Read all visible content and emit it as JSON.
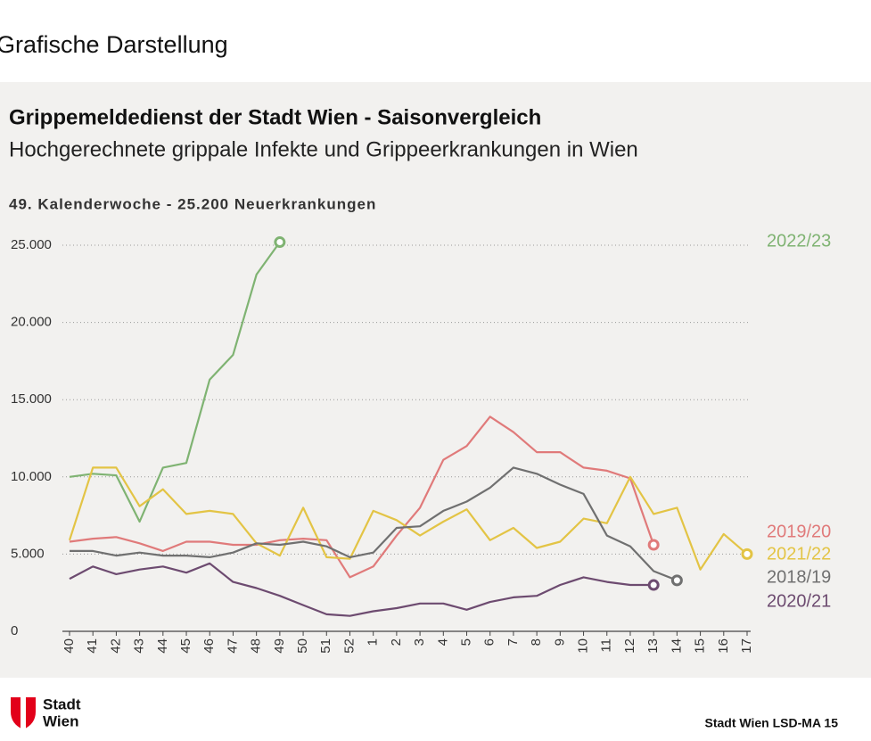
{
  "page": {
    "heading": "Grafische Darstellung",
    "logo": [
      "Stadt",
      "Wien"
    ],
    "footer": "Stadt Wien LSD-MA 15"
  },
  "chart_data": {
    "type": "line",
    "title": "Grippemeldedienst der Stadt Wien - Saisonvergleich",
    "subtitle": "Hochgerechnete grippale Infekte und Grippeerkrankungen in Wien",
    "annotation": "49. Kalenderwoche - 25.200 Neuerkrankungen",
    "categories": [
      "40",
      "41",
      "42",
      "43",
      "44",
      "45",
      "46",
      "47",
      "48",
      "49",
      "50",
      "51",
      "52",
      "1",
      "2",
      "3",
      "4",
      "5",
      "6",
      "7",
      "8",
      "9",
      "10",
      "11",
      "12",
      "13",
      "14",
      "15",
      "16",
      "17"
    ],
    "ylim": [
      0,
      25000
    ],
    "yticks": [
      0,
      {
        "value": 5000,
        "label": "5.000"
      },
      {
        "value": 10000,
        "label": "10.000"
      },
      {
        "value": 15000,
        "label": "15.000"
      },
      {
        "value": 20000,
        "label": "20.000"
      },
      {
        "value": 25000,
        "label": "25.000"
      }
    ],
    "grid": true,
    "series": [
      {
        "name": "2022/23",
        "color": "#7fb372",
        "values": [
          10000,
          10200,
          10100,
          7100,
          10600,
          10900,
          16300,
          17900,
          23100,
          25200,
          null,
          null,
          null,
          null,
          null,
          null,
          null,
          null,
          null,
          null,
          null,
          null,
          null,
          null,
          null,
          null,
          null,
          null,
          null,
          null
        ]
      },
      {
        "name": "2019/20",
        "color": "#e07a7a",
        "values": [
          5800,
          6000,
          6100,
          5700,
          5200,
          5800,
          5800,
          5600,
          5600,
          5900,
          6000,
          5900,
          3500,
          4200,
          6200,
          8000,
          11100,
          12000,
          13900,
          12900,
          11600,
          11600,
          10600,
          10400,
          9900,
          5600,
          null,
          null,
          null,
          null
        ]
      },
      {
        "name": "2021/22",
        "color": "#e3c445",
        "values": [
          5900,
          10600,
          10600,
          8100,
          9200,
          7600,
          7800,
          7600,
          5700,
          4900,
          8000,
          4800,
          4700,
          7800,
          7200,
          6200,
          7100,
          7900,
          5900,
          6700,
          5400,
          5800,
          7300,
          7000,
          10000,
          7600,
          8000,
          4000,
          6300,
          5000
        ]
      },
      {
        "name": "2018/19",
        "color": "#707070",
        "values": [
          5200,
          5200,
          4900,
          5100,
          4900,
          4900,
          4800,
          5100,
          5700,
          5600,
          5800,
          5500,
          4800,
          5100,
          6700,
          6800,
          7800,
          8400,
          9300,
          10600,
          10200,
          9500,
          8900,
          6200,
          5500,
          3900,
          3300,
          null,
          null,
          null
        ]
      },
      {
        "name": "2020/21",
        "color": "#6d4b70",
        "values": [
          3400,
          4200,
          3700,
          4000,
          4200,
          3800,
          4400,
          3200,
          2800,
          2300,
          1700,
          1100,
          1000,
          1300,
          1500,
          1800,
          1800,
          1400,
          1900,
          2200,
          2300,
          3000,
          3500,
          3200,
          3000,
          3000,
          null,
          null,
          null,
          null
        ]
      }
    ]
  }
}
